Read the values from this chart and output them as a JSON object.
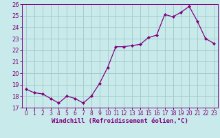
{
  "x": [
    0,
    1,
    2,
    3,
    4,
    5,
    6,
    7,
    8,
    9,
    10,
    11,
    12,
    13,
    14,
    15,
    16,
    17,
    18,
    19,
    20,
    21,
    22,
    23
  ],
  "y": [
    18.6,
    18.3,
    18.2,
    17.8,
    17.4,
    18.0,
    17.8,
    17.4,
    18.0,
    19.1,
    20.5,
    22.3,
    22.3,
    22.4,
    22.5,
    23.1,
    23.3,
    25.1,
    24.9,
    25.3,
    25.8,
    24.5,
    23.0,
    22.6
  ],
  "line_color": "#800080",
  "marker_color": "#800080",
  "bg_color": "#c8eaea",
  "grid_color": "#a8cccc",
  "xlabel": "Windchill (Refroidissement éolien,°C)",
  "xlabel_color": "#800080",
  "ylim": [
    17,
    26
  ],
  "yticks": [
    17,
    18,
    19,
    20,
    21,
    22,
    23,
    24,
    25,
    26
  ],
  "tick_color": "#800080",
  "spine_color": "#800080",
  "tick_fontsize": 6.0,
  "xlabel_fontsize": 6.5
}
